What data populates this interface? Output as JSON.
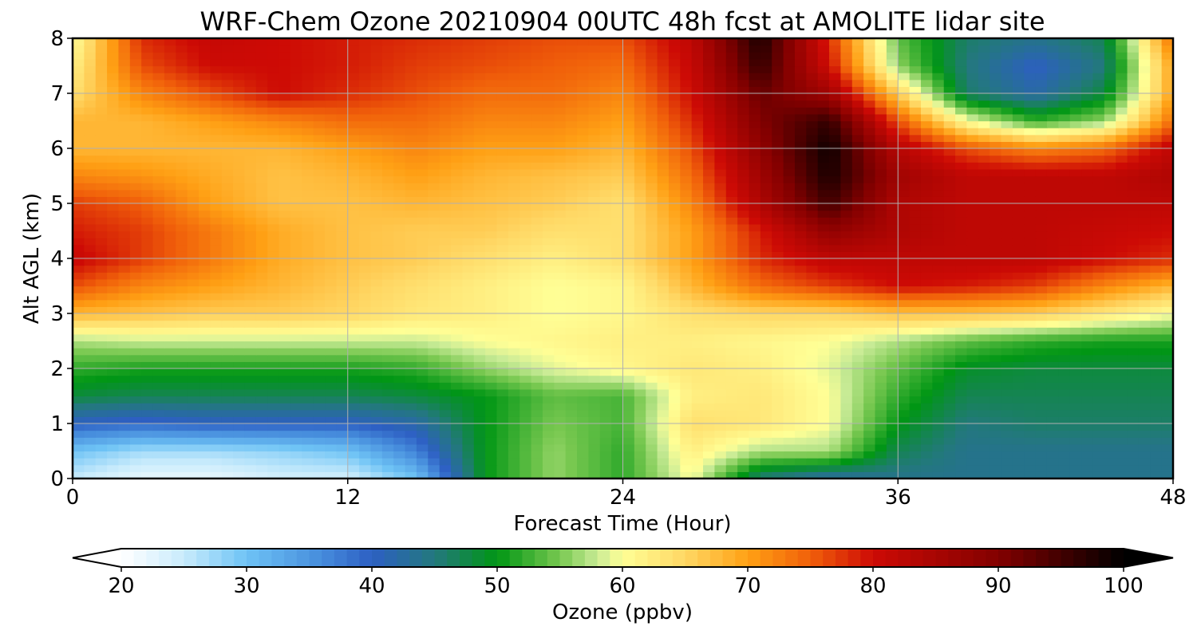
{
  "chart_data": {
    "type": "heatmap",
    "title": "WRF-Chem Ozone  20210904 00UTC 48h fcst at AMOLITE lidar site",
    "xlabel": "Forecast Time (Hour)",
    "ylabel": "Alt AGL (km)",
    "xlim": [
      0,
      48
    ],
    "ylim": [
      0,
      8
    ],
    "x_ticks": [
      "0",
      "12",
      "24",
      "36",
      "48"
    ],
    "y_ticks": [
      "0",
      "1",
      "2",
      "3",
      "4",
      "5",
      "6",
      "7",
      "8"
    ],
    "grid": true,
    "x": [
      0,
      3,
      6,
      9,
      12,
      15,
      18,
      21,
      24,
      27,
      30,
      33,
      36,
      39,
      42,
      45,
      48
    ],
    "y": [
      0,
      0.5,
      1,
      1.5,
      2,
      2.5,
      3,
      3.5,
      4,
      4.5,
      5,
      5.5,
      6,
      6.5,
      7,
      7.5,
      8
    ],
    "z": [
      [
        25,
        22,
        22,
        24,
        24,
        30,
        50,
        56,
        52,
        60,
        45,
        42,
        44,
        44,
        44,
        44,
        44
      ],
      [
        30,
        27,
        27,
        28,
        30,
        37,
        50,
        56,
        52,
        62,
        57,
        57,
        47,
        44,
        44,
        44,
        44
      ],
      [
        40,
        39,
        40,
        40,
        40,
        42,
        50,
        55,
        53,
        64,
        63,
        60,
        50,
        45,
        46,
        46,
        46
      ],
      [
        48,
        47,
        47,
        47,
        47,
        48,
        50,
        54,
        53,
        62,
        63,
        60,
        52,
        47,
        47,
        47,
        47
      ],
      [
        52,
        51,
        51,
        51,
        51,
        52,
        56,
        59,
        61,
        63,
        62,
        59,
        54,
        49,
        48,
        48,
        48
      ],
      [
        57,
        58,
        58,
        58,
        58,
        58,
        60,
        61,
        62,
        62,
        61,
        60,
        57,
        54,
        52,
        51,
        51
      ],
      [
        68,
        67,
        66,
        66,
        65,
        63,
        62,
        60,
        61,
        64,
        65,
        65,
        67,
        67,
        66,
        63,
        60
      ],
      [
        76,
        72,
        70,
        68,
        66,
        64,
        62,
        60,
        61,
        68,
        74,
        77,
        80,
        79,
        77,
        72,
        68
      ],
      [
        81,
        77,
        73,
        69,
        67,
        66,
        64,
        62,
        64,
        70,
        78,
        82,
        82,
        82,
        82,
        80,
        78
      ],
      [
        79,
        77,
        73,
        69,
        67,
        66,
        66,
        64,
        64,
        70,
        79,
        88,
        84,
        82,
        82,
        81,
        80
      ],
      [
        77,
        75,
        70,
        67,
        67,
        68,
        67,
        66,
        64,
        72,
        84,
        95,
        84,
        82,
        82,
        82,
        82
      ],
      [
        72,
        71,
        69,
        67,
        68,
        70,
        68,
        67,
        66,
        74,
        86,
        98,
        86,
        82,
        82,
        82,
        84
      ],
      [
        68,
        68,
        68,
        68,
        70,
        72,
        70,
        70,
        68,
        76,
        88,
        99,
        83,
        76,
        72,
        74,
        82
      ],
      [
        68,
        68,
        70,
        72,
        74,
        74,
        72,
        72,
        70,
        78,
        90,
        96,
        76,
        60,
        52,
        56,
        74
      ],
      [
        64,
        72,
        76,
        80,
        78,
        76,
        74,
        74,
        72,
        80,
        92,
        86,
        66,
        46,
        42,
        48,
        70
      ],
      [
        62,
        76,
        80,
        80,
        79,
        77,
        76,
        75,
        74,
        81,
        96,
        80,
        56,
        45,
        40,
        45,
        70
      ],
      [
        60,
        78,
        81,
        80,
        79,
        78,
        77,
        76,
        76,
        82,
        98,
        78,
        54,
        46,
        44,
        47,
        74
      ]
    ],
    "colorbar": {
      "label": "Ozone  (ppbv)",
      "min": 20,
      "max": 100,
      "extend": "both",
      "ticks": [
        "20",
        "30",
        "40",
        "50",
        "60",
        "70",
        "80",
        "90",
        "100"
      ]
    }
  }
}
